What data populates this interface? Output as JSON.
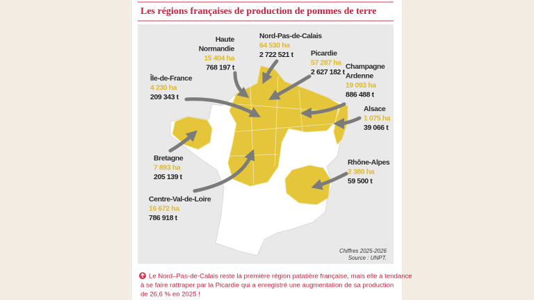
{
  "header": {
    "title": "Les régions françaises de production de pommes de terre"
  },
  "regions": [
    {
      "name": [
        "Haute",
        "Normandie"
      ],
      "area": "15 404 ha",
      "tonnage": "768 197 t"
    },
    {
      "name": [
        "Nord-Pas-de-Calais"
      ],
      "area": "64 530 ha",
      "tonnage": "2 722 521 t"
    },
    {
      "name": [
        "Picardie"
      ],
      "area": "57 287 ha",
      "tonnage": "2 627 182 t"
    },
    {
      "name": [
        "Champagne",
        "Ardenne"
      ],
      "area": "19 093 ha",
      "tonnage": "886 488 t"
    },
    {
      "name": [
        "Île-de-France"
      ],
      "area": "4 230 ha",
      "tonnage": "209 343 t"
    },
    {
      "name": [
        "Alsace"
      ],
      "area": "1 075 ha",
      "tonnage": "39 066 t"
    },
    {
      "name": [
        "Bretagne"
      ],
      "area": "7 893 ha",
      "tonnage": "205 139 t"
    },
    {
      "name": [
        "Rhône-Alpes"
      ],
      "area": "2 380 ha",
      "tonnage": "59 500 t"
    },
    {
      "name": [
        "Centre-Val-de-Loire"
      ],
      "area": "16 672 ha",
      "tonnage": "786 918 t"
    }
  ],
  "source": {
    "period": "Chiffres 2025-2026",
    "credit": "Source : UNPT."
  },
  "footnote": [
    "Le Nord–Pas-de-Calais reste la première région patatière française, mais elle a tendance",
    "à se faire rattraper par la Picardie qui a enregistré une augmentation de sa production",
    "de 26,6 % en 2025 !"
  ]
}
